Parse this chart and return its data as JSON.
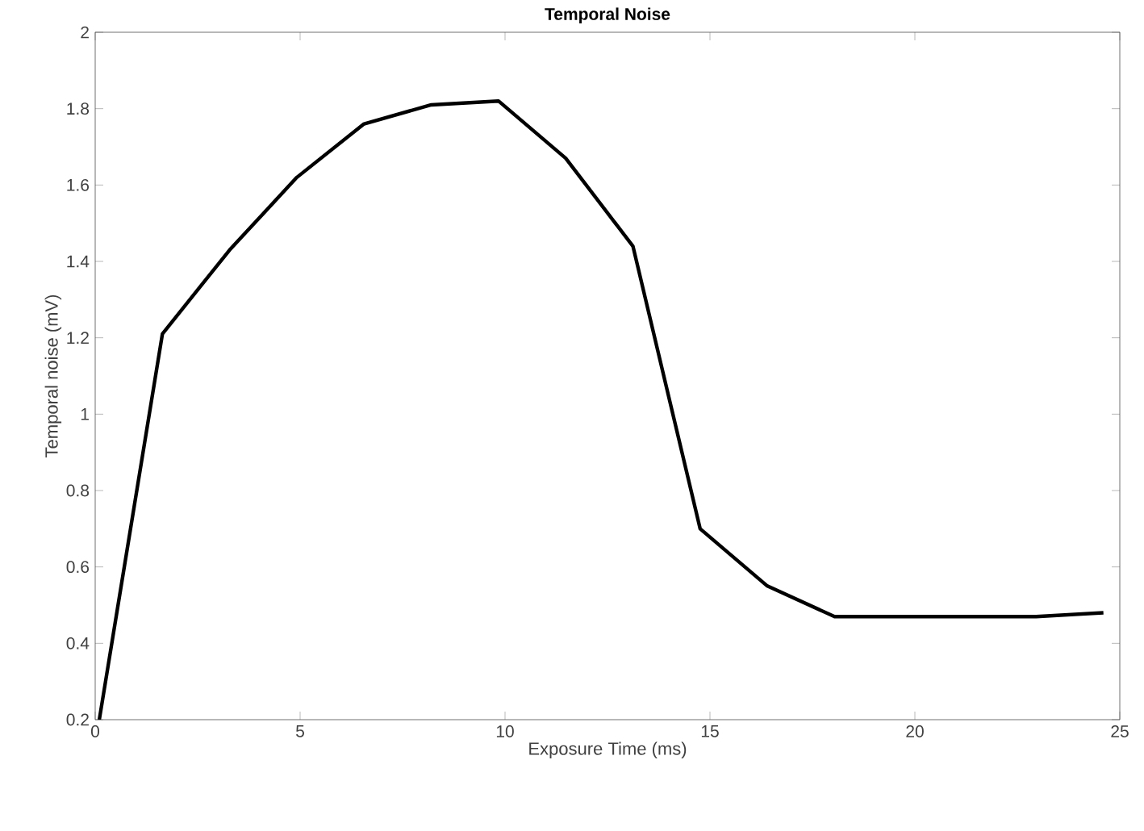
{
  "chart_data": {
    "type": "line",
    "title": "Temporal Noise",
    "xlabel": "Exposure Time (ms)",
    "ylabel": "Temporal noise (mV)",
    "x": [
      0.1,
      1.64,
      3.28,
      4.92,
      6.56,
      8.2,
      9.84,
      11.48,
      13.12,
      14.76,
      16.4,
      18.04,
      19.68,
      21.32,
      22.96,
      24.6
    ],
    "series": [
      {
        "color": "#000000",
        "values": [
          0.2,
          1.21,
          1.43,
          1.62,
          1.76,
          1.81,
          1.82,
          1.67,
          1.44,
          0.7,
          0.55,
          0.47,
          0.47,
          0.47,
          0.47,
          0.48
        ]
      }
    ],
    "xlim": [
      0,
      25
    ],
    "ylim": [
      0.2,
      2
    ],
    "xticks": [
      0,
      5,
      10,
      15,
      20,
      25
    ],
    "yticks": [
      0.2,
      0.4,
      0.6,
      0.8,
      1,
      1.2,
      1.4,
      1.6,
      1.8,
      2
    ],
    "grid": false,
    "legend": false,
    "marker": "none",
    "line_style": "solid"
  }
}
